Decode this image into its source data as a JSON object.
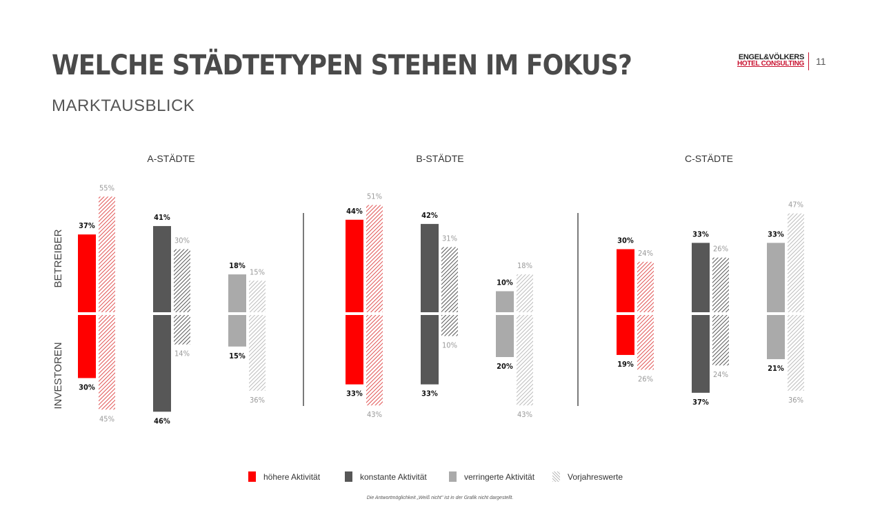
{
  "header": {
    "title": "WELCHE STÄDTETYPEN STEHEN IM FOKUS?",
    "subtitle": "MARKTAUSBLICK",
    "logo_line1": "ENGEL&VÖLKERS",
    "logo_line2": "HOTEL CONSULTING",
    "page_number": "11"
  },
  "colors": {
    "hoehere": "#ff0000",
    "konstante": "#575757",
    "verringerte": "#aaaaaa",
    "vorjahr_red": "#e05050",
    "vorjahr_dark": "#555555",
    "vorjahr_light": "#bbbbbb",
    "label_current": "#111111",
    "label_previous": "#999999"
  },
  "chart_data": {
    "type": "bar",
    "row_labels": [
      "BETREIBER",
      "INVESTOREN"
    ],
    "groups": [
      {
        "name": "A-STÄDTE",
        "series": [
          {
            "key": "hoehere",
            "betreiber": 37,
            "betreiber_vorjahr": 55,
            "investoren": 30,
            "investoren_vorjahr": 45
          },
          {
            "key": "konstante",
            "betreiber": 41,
            "betreiber_vorjahr": 30,
            "investoren": 46,
            "investoren_vorjahr": 14
          },
          {
            "key": "verringerte",
            "betreiber": 18,
            "betreiber_vorjahr": 15,
            "investoren": 15,
            "investoren_vorjahr": 36
          }
        ]
      },
      {
        "name": "B-STÄDTE",
        "series": [
          {
            "key": "hoehere",
            "betreiber": 44,
            "betreiber_vorjahr": 51,
            "investoren": 33,
            "investoren_vorjahr": 43
          },
          {
            "key": "konstante",
            "betreiber": 42,
            "betreiber_vorjahr": 31,
            "investoren": 33,
            "investoren_vorjahr": 10
          },
          {
            "key": "verringerte",
            "betreiber": 10,
            "betreiber_vorjahr": 18,
            "investoren": 20,
            "investoren_vorjahr": 43
          }
        ]
      },
      {
        "name": "C-STÄDTE",
        "series": [
          {
            "key": "hoehere",
            "betreiber": 30,
            "betreiber_vorjahr": 24,
            "investoren": 19,
            "investoren_vorjahr": 26
          },
          {
            "key": "konstante",
            "betreiber": 33,
            "betreiber_vorjahr": 26,
            "investoren": 37,
            "investoren_vorjahr": 24
          },
          {
            "key": "verringerte",
            "betreiber": 33,
            "betreiber_vorjahr": 47,
            "investoren": 21,
            "investoren_vorjahr": 36
          }
        ]
      }
    ],
    "legend": [
      {
        "key": "hoehere",
        "label": "höhere Aktivität"
      },
      {
        "key": "konstante",
        "label": "konstante Aktivität"
      },
      {
        "key": "verringerte",
        "label": "verringerte Aktivität"
      },
      {
        "key": "vorjahr",
        "label": "Vorjahreswerte"
      }
    ],
    "legend_position": "bottom",
    "grid": false
  },
  "footnote": "Die Antwortmöglichkeit „Weiß nicht\" ist in der Grafik nicht dargestellt."
}
